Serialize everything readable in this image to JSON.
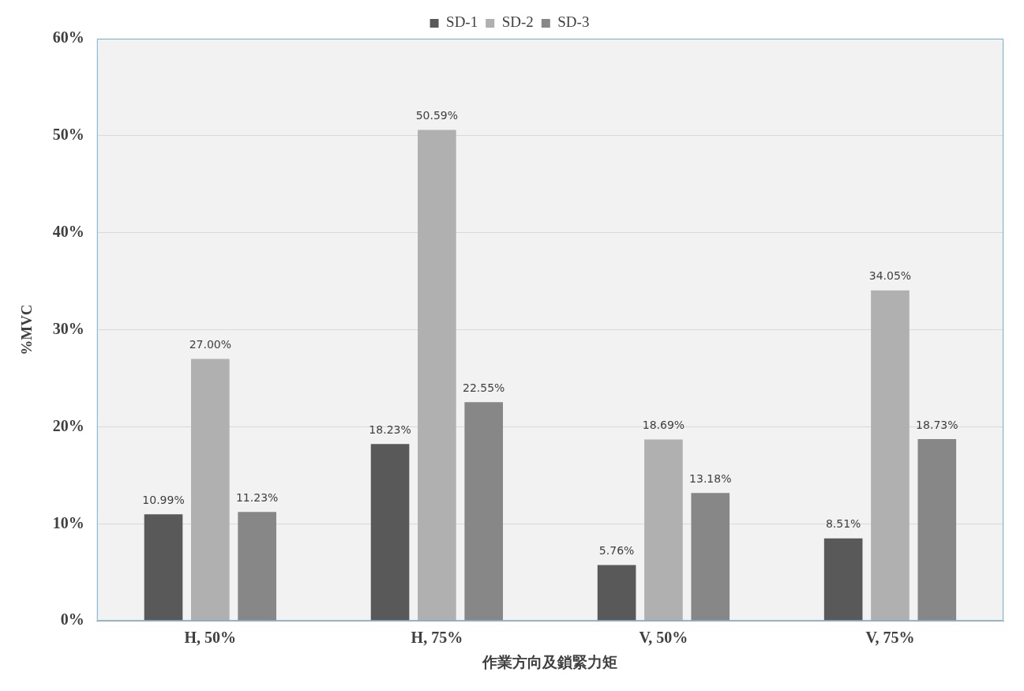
{
  "chart_data": {
    "type": "bar",
    "xlabel": "作業方向及鎖緊力矩",
    "ylabel": "%MVC",
    "categories": [
      "H, 50%",
      "H, 75%",
      "V, 50%",
      "V, 75%"
    ],
    "series": [
      {
        "name": "SD-1",
        "color": "#595959",
        "values": [
          10.99,
          18.23,
          5.76,
          8.51
        ],
        "value_labels": [
          "10.99%",
          "18.23%",
          "5.76%",
          "8.51%"
        ]
      },
      {
        "name": "SD-2",
        "color": "#b0b0b0",
        "values": [
          27.0,
          50.59,
          18.69,
          34.05
        ],
        "value_labels": [
          "27.00%",
          "50.59%",
          "18.69%",
          "34.05%"
        ]
      },
      {
        "name": "SD-3",
        "color": "#878787",
        "values": [
          11.23,
          22.55,
          13.18,
          18.73
        ],
        "value_labels": [
          "11.23%",
          "22.55%",
          "13.18%",
          "18.73%"
        ]
      }
    ],
    "ylim": [
      0,
      60
    ],
    "yticks": [
      {
        "value": 0,
        "label": "0%"
      },
      {
        "value": 10,
        "label": "10%"
      },
      {
        "value": 20,
        "label": "20%"
      },
      {
        "value": 30,
        "label": "30%"
      },
      {
        "value": 40,
        "label": "40%"
      },
      {
        "value": 50,
        "label": "50%"
      },
      {
        "value": 60,
        "label": "60%"
      }
    ],
    "grid": "y",
    "legend": "top"
  }
}
